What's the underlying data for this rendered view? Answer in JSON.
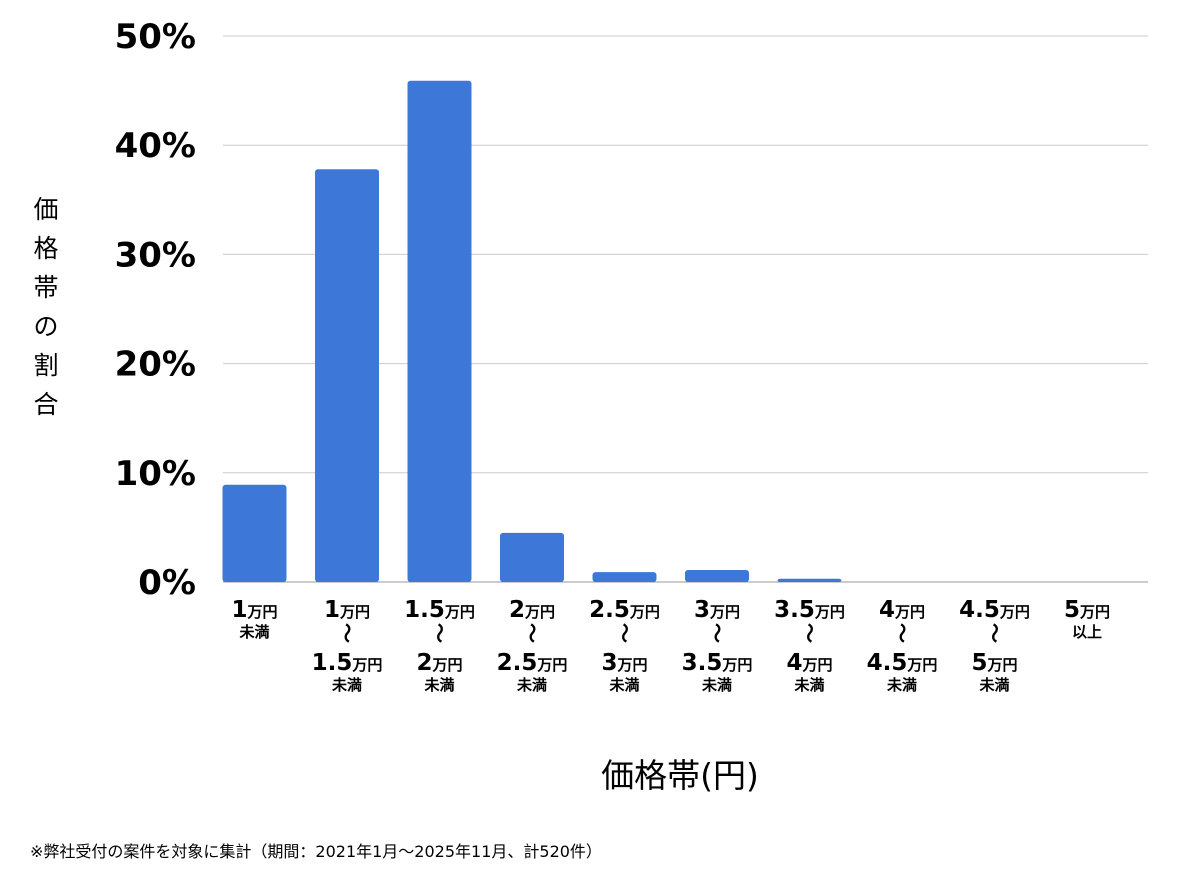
{
  "chart_data": {
    "type": "bar",
    "ylabel": "価格帯の割合",
    "xlabel": "価格帯(円)",
    "note": "※弊社受付の案件を対象に集計（期間：2021年1月〜2025年11月、計520件）",
    "ylim": [
      0,
      50
    ],
    "yticks": [
      {
        "value": 0,
        "label": "0%"
      },
      {
        "value": 10,
        "label": "10%"
      },
      {
        "value": 20,
        "label": "20%"
      },
      {
        "value": 30,
        "label": "30%"
      },
      {
        "value": 40,
        "label": "40%"
      },
      {
        "value": 50,
        "label": "50%"
      }
    ],
    "grid": true,
    "bar_color": "#3d78d8",
    "grid_color": "#cccccc",
    "categories": [
      {
        "from": "1",
        "to": null,
        "suffix": "未満"
      },
      {
        "from": "1",
        "to": "1.5",
        "suffix": "未満"
      },
      {
        "from": "1.5",
        "to": "2",
        "suffix": "未満"
      },
      {
        "from": "2",
        "to": "2.5",
        "suffix": "未満"
      },
      {
        "from": "2.5",
        "to": "3",
        "suffix": "未満"
      },
      {
        "from": "3",
        "to": "3.5",
        "suffix": "未満"
      },
      {
        "from": "3.5",
        "to": "4",
        "suffix": "未満"
      },
      {
        "from": "4",
        "to": "4.5",
        "suffix": "未満"
      },
      {
        "from": "4.5",
        "to": "5",
        "suffix": "未満"
      },
      {
        "from": "5",
        "to": null,
        "suffix": "以上"
      }
    ],
    "unit": "万円",
    "range_mark": "〜",
    "values": [
      8.9,
      37.8,
      45.9,
      4.5,
      0.9,
      1.1,
      0.3,
      0,
      0,
      0
    ]
  }
}
